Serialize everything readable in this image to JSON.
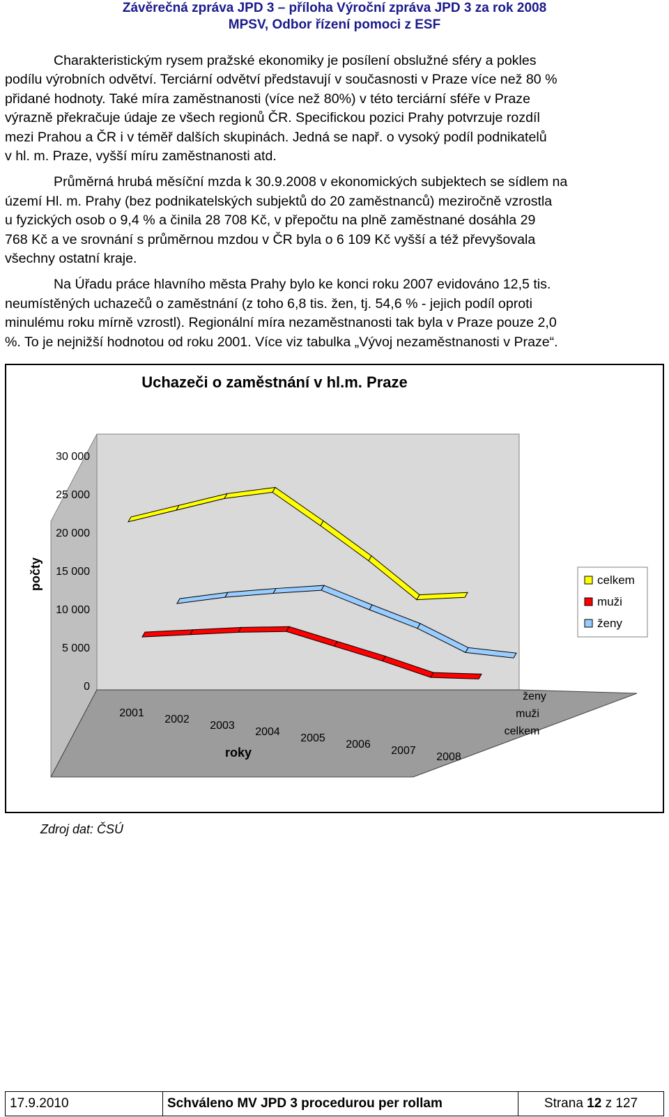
{
  "header": {
    "line1": "Závěrečná zpráva JPD 3 – příloha Výroční zpráva JPD 3 za rok 2008",
    "line2": "MPSV, Odbor řízení pomoci z ESF"
  },
  "paragraphs": [
    {
      "lines": [
        "Charakteristickým rysem pražské ekonomiky je posílení obslužné sféry a pokles",
        "podílu výrobních odvětví. Terciární odvětví představují v současnosti v Praze více než 80 %",
        "přidané hodnoty. Také míra zaměstnanosti (více než 80%) v této terciární sféře v Praze",
        "výrazně překračuje údaje ze všech regionů ČR. Specifickou pozici Prahy potvrzuje rozdíl",
        "mezi Prahou a ČR i v téměř dalších skupinách. Jedná se např. o vysoký podíl podnikatelů",
        "v hl. m. Praze, vyšší míru zaměstnanosti atd."
      ]
    },
    {
      "lines": [
        "Průměrná hrubá měsíční mzda k 30.9.2008 v ekonomických subjektech se sídlem na",
        "území Hl. m. Prahy (bez podnikatelských subjektů do 20 zaměstnanců) meziročně vzrostla",
        "u fyzických osob o 9,4 % a činila 28 708 Kč, v přepočtu na plně zaměstnané dosáhla 29",
        "768 Kč a ve srovnání s průměrnou mzdou v ČR byla o 6 109 Kč vyšší a též převyšovala",
        "všechny ostatní kraje."
      ]
    },
    {
      "lines": [
        "Na Úřadu práce hlavního města Prahy bylo ke konci roku 2007 evidováno 12,5 tis.",
        "neumístěných uchazečů o zaměstnání (z toho 6,8 tis. žen, tj. 54,6 % - jejich podíl oproti",
        "minulému roku mírně vzrostl). Regionální míra nezaměstnanosti tak byla v Praze pouze 2,0",
        "%. To je nejnižší hodnotou od roku 2001. Více viz tabulka „Vývoj nezaměstnanosti v Praze“."
      ]
    }
  ],
  "chart_data": {
    "type": "line",
    "title": "Uchazeči o zaměstnání v hl.m. Praze",
    "xlabel": "roky",
    "ylabel": "počty",
    "categories": [
      "2001",
      "2002",
      "2003",
      "2004",
      "2005",
      "2006",
      "2007",
      "2008"
    ],
    "y_ticks": [
      "30 000",
      "25 000",
      "20 000",
      "15 000",
      "10 000",
      "5 000",
      "0"
    ],
    "ylim": [
      0,
      30000
    ],
    "series": [
      {
        "name": "celkem",
        "color": "#ffff00",
        "values": [
          21500,
          23000,
          24500,
          25300,
          21000,
          16500,
          11500,
          11800
        ]
      },
      {
        "name": "muži",
        "color": "#ff0000",
        "values": [
          8500,
          8800,
          9100,
          9200,
          7300,
          5400,
          3300,
          3100
        ]
      },
      {
        "name": "ženy",
        "color": "#99ccff",
        "values": [
          12800,
          13600,
          14100,
          14500,
          12000,
          9600,
          6500,
          5800
        ]
      }
    ],
    "legend": [
      "celkem",
      "muži",
      "ženy"
    ],
    "legend_position": "right",
    "depth_labels": [
      "ženy",
      "muži",
      "celkem"
    ],
    "grid": false
  },
  "source": "Zdroj dat: ČSÚ",
  "footer": {
    "date": "17.9.2010",
    "approval": "Schváleno MV JPD 3 procedurou per rollam",
    "page_prefix": "Strana",
    "page_num": "12",
    "page_sep": "z",
    "page_total": "127"
  }
}
